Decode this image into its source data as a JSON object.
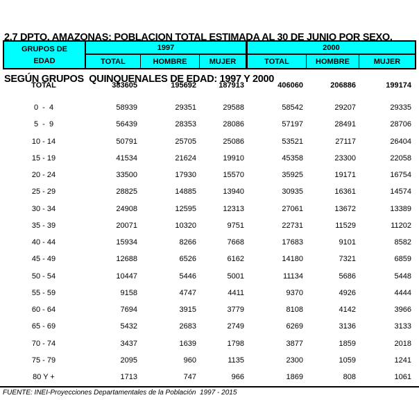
{
  "title": {
    "line1": "2.7 DPTO. AMAZONAS: POBLACION TOTAL ESTIMADA AL 30 DE JUNIO POR SEXO,",
    "line2": "SEGÚN GRUPOS  QUINQUENALES DE EDAD: 1997 Y 2000"
  },
  "table_header": {
    "row_group_label_line1": "GRUPOS DE",
    "row_group_label_line2": "EDAD",
    "year_groups": [
      "1997",
      "2000"
    ],
    "sub_columns": [
      "TOTAL",
      "HOMBRE",
      "MUJER"
    ]
  },
  "chart_data": {
    "type": "table",
    "columns": [
      "GRUPOS DE EDAD",
      "1997 TOTAL",
      "1997 HOMBRE",
      "1997 MUJER",
      "2000 TOTAL",
      "2000 HOMBRE",
      "2000 MUJER"
    ],
    "total_row": {
      "label": "TOTAL",
      "values": [
        "383605",
        "195692",
        "187913",
        "406060",
        "206886",
        "199174"
      ]
    },
    "rows": [
      {
        "label": "0  -  4",
        "values": [
          "58939",
          "29351",
          "29588",
          "58542",
          "29207",
          "29335"
        ]
      },
      {
        "label": "5  -  9",
        "values": [
          "56439",
          "28353",
          "28086",
          "57197",
          "28491",
          "28706"
        ]
      },
      {
        "label": "10 - 14",
        "values": [
          "50791",
          "25705",
          "25086",
          "53521",
          "27117",
          "26404"
        ]
      },
      {
        "label": "15 - 19",
        "values": [
          "41534",
          "21624",
          "19910",
          "45358",
          "23300",
          "22058"
        ]
      },
      {
        "label": "20 - 24",
        "values": [
          "33500",
          "17930",
          "15570",
          "35925",
          "19171",
          "16754"
        ]
      },
      {
        "label": "25 - 29",
        "values": [
          "28825",
          "14885",
          "13940",
          "30935",
          "16361",
          "14574"
        ]
      },
      {
        "label": "30 - 34",
        "values": [
          "24908",
          "12595",
          "12313",
          "27061",
          "13672",
          "13389"
        ]
      },
      {
        "label": "35 - 39",
        "values": [
          "20071",
          "10320",
          "9751",
          "22731",
          "11529",
          "11202"
        ]
      },
      {
        "label": "40 - 44",
        "values": [
          "15934",
          "8266",
          "7668",
          "17683",
          "9101",
          "8582"
        ]
      },
      {
        "label": "45 - 49",
        "values": [
          "12688",
          "6526",
          "6162",
          "14180",
          "7321",
          "6859"
        ]
      },
      {
        "label": "50 - 54",
        "values": [
          "10447",
          "5446",
          "5001",
          "11134",
          "5686",
          "5448"
        ]
      },
      {
        "label": "55 - 59",
        "values": [
          "9158",
          "4747",
          "4411",
          "9370",
          "4926",
          "4444"
        ]
      },
      {
        "label": "60 - 64",
        "values": [
          "7694",
          "3915",
          "3779",
          "8108",
          "4142",
          "3966"
        ]
      },
      {
        "label": "65 - 69",
        "values": [
          "5432",
          "2683",
          "2749",
          "6269",
          "3136",
          "3133"
        ]
      },
      {
        "label": "70 - 74",
        "values": [
          "3437",
          "1639",
          "1798",
          "3877",
          "1859",
          "2018"
        ]
      },
      {
        "label": "75 - 79",
        "values": [
          "2095",
          "960",
          "1135",
          "2300",
          "1059",
          "1241"
        ]
      },
      {
        "label": "80 Y +",
        "values": [
          "1713",
          "747",
          "966",
          "1869",
          "808",
          "1061"
        ]
      }
    ]
  },
  "footer": {
    "source": "FUENTE: INEI-Proyecciones Departamentales de la Población  1997 - 2015"
  },
  "colors": {
    "header_bg": "#00FFFF",
    "border": "#000000",
    "text": "#000000",
    "page_bg": "#FFFFFF"
  }
}
